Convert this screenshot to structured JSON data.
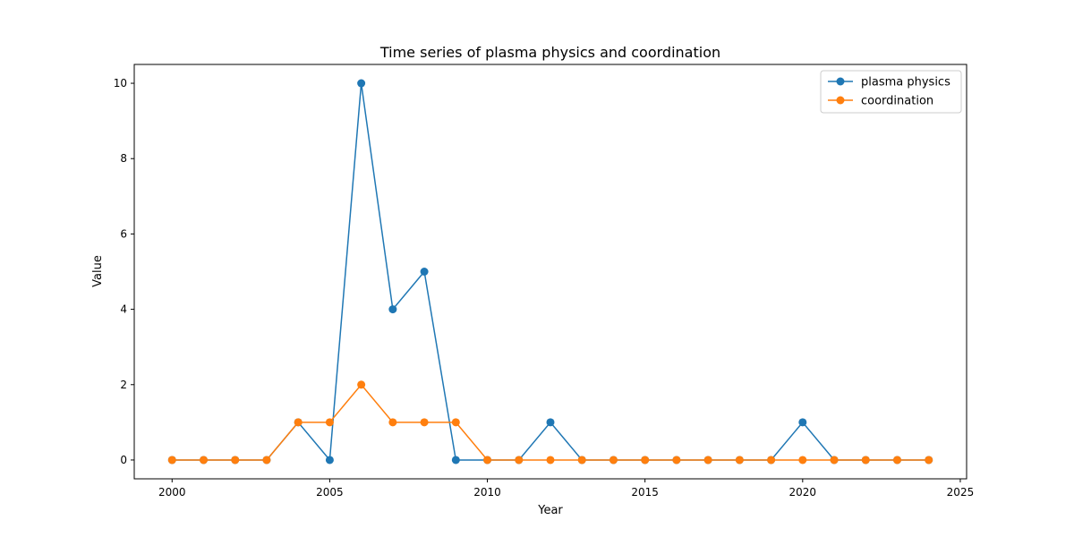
{
  "chart_data": {
    "type": "line",
    "title": "Time series of plasma physics and coordination",
    "xlabel": "Year",
    "ylabel": "Value",
    "x": [
      2000,
      2001,
      2002,
      2003,
      2004,
      2005,
      2006,
      2007,
      2008,
      2009,
      2010,
      2011,
      2012,
      2013,
      2014,
      2015,
      2016,
      2017,
      2018,
      2019,
      2020,
      2021,
      2022,
      2023,
      2024
    ],
    "xlim": [
      1998.8,
      2025.2
    ],
    "ylim": [
      -0.5,
      10.5
    ],
    "xticks": [
      2000,
      2005,
      2010,
      2015,
      2020,
      2025
    ],
    "yticks": [
      0,
      2,
      4,
      6,
      8,
      10
    ],
    "grid": false,
    "legend_position": "top-right",
    "series": [
      {
        "name": "plasma physics",
        "color": "#1f77b4",
        "values": [
          0,
          0,
          0,
          0,
          1,
          0,
          10,
          4,
          5,
          0,
          0,
          0,
          1,
          0,
          0,
          0,
          0,
          0,
          0,
          0,
          1,
          0,
          0,
          0,
          0
        ]
      },
      {
        "name": "coordination",
        "color": "#ff7f0e",
        "values": [
          0,
          0,
          0,
          0,
          1,
          1,
          2,
          1,
          1,
          1,
          0,
          0,
          0,
          0,
          0,
          0,
          0,
          0,
          0,
          0,
          0,
          0,
          0,
          0,
          0
        ]
      }
    ]
  }
}
